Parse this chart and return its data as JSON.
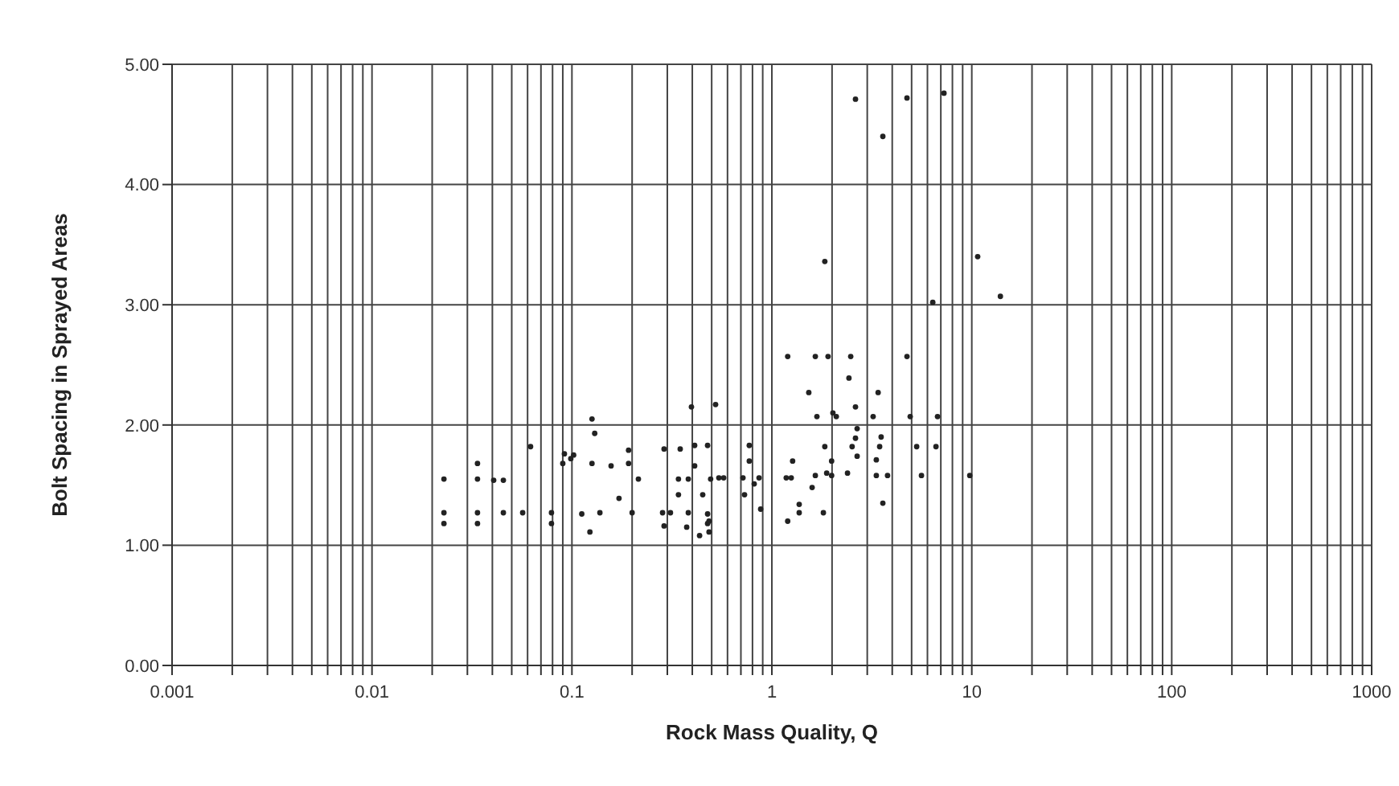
{
  "chart_data": {
    "type": "scatter",
    "xlabel": "Rock Mass Quality, Q",
    "ylabel": "Bolt Spacing in Sprayed Areas",
    "log": "x",
    "grid": true,
    "marker": "circle",
    "color": "#222222",
    "xlim": [
      0.001,
      1000
    ],
    "ylim": [
      0,
      5
    ],
    "xticks": [
      0.001,
      {
        "value": 0.002,
        "label": null
      },
      {
        "value": 0.003,
        "label": null
      },
      {
        "value": 0.004,
        "label": null
      },
      {
        "value": 0.005,
        "label": null
      },
      {
        "value": 0.006,
        "label": null
      },
      {
        "value": 0.007,
        "label": null
      },
      {
        "value": 0.008,
        "label": null
      },
      {
        "value": 0.009,
        "label": null
      },
      0.01,
      {
        "value": 0.02,
        "label": null
      },
      {
        "value": 0.03,
        "label": null
      },
      {
        "value": 0.04,
        "label": null
      },
      {
        "value": 0.05,
        "label": null
      },
      {
        "value": 0.06,
        "label": null
      },
      {
        "value": 0.07,
        "label": null
      },
      {
        "value": 0.08,
        "label": null
      },
      {
        "value": 0.09,
        "label": null
      },
      0.1,
      {
        "value": 0.2,
        "label": null
      },
      {
        "value": 0.3,
        "label": null
      },
      {
        "value": 0.4,
        "label": null
      },
      {
        "value": 0.5,
        "label": null
      },
      {
        "value": 0.6,
        "label": null
      },
      {
        "value": 0.7,
        "label": null
      },
      {
        "value": 0.8,
        "label": null
      },
      {
        "value": 0.9,
        "label": null
      },
      1,
      {
        "value": 2,
        "label": null
      },
      {
        "value": 3,
        "label": null
      },
      {
        "value": 4,
        "label": null
      },
      {
        "value": 5,
        "label": null
      },
      {
        "value": 6,
        "label": null
      },
      {
        "value": 7,
        "label": null
      },
      {
        "value": 8,
        "label": null
      },
      {
        "value": 9,
        "label": null
      },
      10,
      {
        "value": 20,
        "label": null
      },
      {
        "value": 30,
        "label": null
      },
      {
        "value": 40,
        "label": null
      },
      {
        "value": 50,
        "label": null
      },
      {
        "value": 60,
        "label": null
      },
      {
        "value": 70,
        "label": null
      },
      {
        "value": 80,
        "label": null
      },
      {
        "value": 90,
        "label": null
      },
      100,
      {
        "value": 200,
        "label": null
      },
      {
        "value": 300,
        "label": null
      },
      {
        "value": 400,
        "label": null
      },
      {
        "value": 500,
        "label": null
      },
      {
        "value": 600,
        "label": null
      },
      {
        "value": 700,
        "label": null
      },
      {
        "value": 800,
        "label": null
      },
      {
        "value": 900,
        "label": null
      },
      1000
    ],
    "yticks": [
      {
        "value": 0,
        "label": "0.00"
      },
      {
        "value": 1,
        "label": "1.00"
      },
      {
        "value": 2,
        "label": "2.00"
      },
      {
        "value": 3,
        "label": "3.00"
      },
      {
        "value": 4,
        "label": "4.00"
      },
      {
        "value": 5,
        "label": "5.00"
      }
    ],
    "x": [
      0.0229,
      0.0229,
      0.0229,
      0.0337,
      0.0337,
      0.0337,
      0.0337,
      0.0406,
      0.0454,
      0.0454,
      0.0567,
      0.0621,
      0.079,
      0.079,
      0.0987,
      0.09,
      0.0917,
      0.102,
      0.112,
      0.123,
      0.126,
      0.126,
      0.13,
      0.138,
      0.157,
      0.172,
      0.192,
      0.192,
      0.2,
      0.215,
      0.284,
      0.289,
      0.289,
      0.311,
      0.341,
      0.341,
      0.348,
      0.375,
      0.382,
      0.382,
      0.396,
      0.411,
      0.411,
      0.435,
      0.451,
      0.477,
      0.477,
      0.477,
      0.485,
      0.485,
      0.494,
      0.523,
      0.543,
      0.574,
      0.717,
      0.73,
      0.771,
      0.771,
      0.816,
      0.863,
      0.879,
      1.18,
      1.2,
      1.2,
      1.25,
      1.27,
      1.37,
      1.37,
      1.53,
      1.59,
      1.65,
      1.65,
      1.68,
      1.81,
      1.84,
      1.84,
      1.88,
      1.91,
      1.99,
      1.99,
      2.02,
      2.1,
      2.39,
      2.43,
      2.48,
      2.52,
      2.62,
      2.62,
      2.67,
      2.67,
      3.21,
      3.33,
      3.33,
      3.4,
      3.46,
      3.52,
      3.59,
      3.79,
      2.62,
      4.74,
      7.26,
      3.59,
      10.7,
      6.38,
      4.74,
      4.92,
      5.3,
      5.6,
      6.62,
      6.74,
      9.77,
      13.9
    ],
    "values": [
      1.55,
      1.27,
      1.18,
      1.68,
      1.55,
      1.27,
      1.18,
      1.54,
      1.54,
      1.27,
      1.27,
      1.82,
      1.27,
      1.18,
      1.72,
      1.68,
      1.76,
      1.75,
      1.26,
      1.11,
      2.05,
      1.68,
      1.93,
      1.27,
      1.66,
      1.39,
      1.79,
      1.68,
      1.27,
      1.55,
      1.27,
      1.8,
      1.16,
      1.27,
      1.55,
      1.42,
      1.8,
      1.15,
      1.55,
      1.27,
      2.15,
      1.83,
      1.66,
      1.08,
      1.42,
      1.83,
      1.26,
      1.18,
      1.2,
      1.11,
      1.55,
      2.17,
      1.56,
      1.56,
      1.56,
      1.42,
      1.83,
      1.7,
      1.51,
      1.56,
      1.3,
      1.56,
      2.57,
      1.2,
      1.56,
      1.7,
      1.34,
      1.27,
      2.27,
      1.48,
      2.57,
      1.58,
      2.07,
      1.27,
      3.36,
      1.82,
      1.6,
      2.57,
      1.7,
      1.58,
      2.1,
      2.07,
      1.6,
      2.39,
      2.57,
      1.82,
      2.15,
      1.89,
      1.97,
      1.74,
      2.07,
      1.71,
      1.58,
      2.27,
      1.82,
      1.9,
      1.35,
      1.58,
      4.71,
      4.72,
      4.76,
      4.4,
      3.4,
      3.02,
      2.57,
      2.07,
      1.82,
      1.58,
      1.82,
      2.07,
      1.58,
      3.07
    ]
  }
}
